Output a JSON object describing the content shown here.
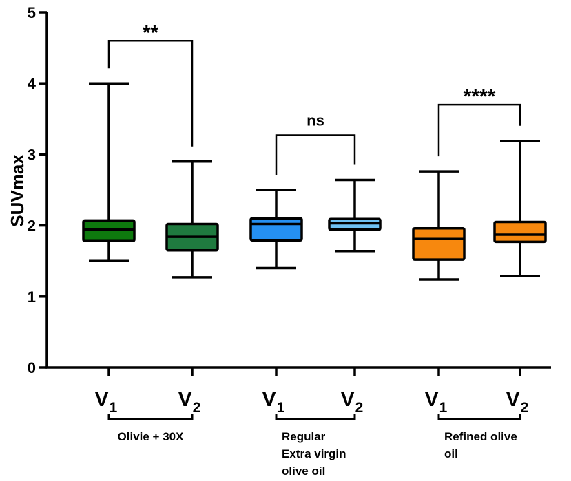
{
  "chart_data": {
    "type": "box",
    "ylabel": "SUVmax",
    "ylim": [
      0,
      5
    ],
    "yticks": [
      0,
      1,
      2,
      3,
      4,
      5
    ],
    "grid": false,
    "boxes": [
      {
        "label": "V",
        "sub": "1",
        "group": 0,
        "color": "#0e7a0e",
        "min": 1.5,
        "q1": 1.78,
        "median": 1.94,
        "q3": 2.07,
        "max": 4.0
      },
      {
        "label": "V",
        "sub": "2",
        "group": 0,
        "color": "#1f7a3f",
        "min": 1.27,
        "q1": 1.65,
        "median": 1.84,
        "q3": 2.02,
        "max": 2.9
      },
      {
        "label": "V",
        "sub": "1",
        "group": 1,
        "color": "#2590f2",
        "min": 1.4,
        "q1": 1.79,
        "median": 2.02,
        "q3": 2.1,
        "max": 2.5
      },
      {
        "label": "V",
        "sub": "2",
        "group": 1,
        "color": "#6fc1f2",
        "min": 1.64,
        "q1": 1.94,
        "median": 2.03,
        "q3": 2.09,
        "max": 2.64
      },
      {
        "label": "V",
        "sub": "1",
        "group": 2,
        "color": "#f7880e",
        "min": 1.24,
        "q1": 1.52,
        "median": 1.81,
        "q3": 1.96,
        "max": 2.76
      },
      {
        "label": "V",
        "sub": "2",
        "group": 2,
        "color": "#f7880e",
        "min": 1.29,
        "q1": 1.77,
        "median": 1.87,
        "q3": 2.05,
        "max": 3.19
      }
    ],
    "groups": [
      {
        "lines": [
          "Olivie + 30X"
        ]
      },
      {
        "lines": [
          "Regular",
          "Extra virgin",
          "olive oil"
        ]
      },
      {
        "lines": [
          "Refined olive",
          "oil"
        ]
      }
    ],
    "comparisons": [
      {
        "from": 0,
        "to": 1,
        "label": "**",
        "y": 4.6
      },
      {
        "from": 2,
        "to": 3,
        "label": "ns",
        "y": 3.27
      },
      {
        "from": 4,
        "to": 5,
        "label": "****",
        "y": 3.7
      }
    ]
  }
}
